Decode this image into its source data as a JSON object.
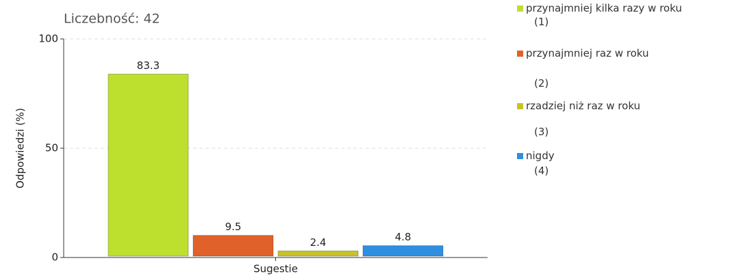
{
  "chart_data": {
    "type": "bar",
    "title": "Liczebność: 42",
    "y_label": "Odpowiedzi (%)",
    "categories": [
      "Sugestie"
    ],
    "series": [
      {
        "name": "przynajmniej kilka razy w roku (1)",
        "color": "#bde02e",
        "values": [
          83.3
        ]
      },
      {
        "name": "przynajmniej raz w roku (2)",
        "color": "#e0622a",
        "values": [
          9.5
        ]
      },
      {
        "name": "rzadziej niż raz w roku (3)",
        "color": "#c8c228",
        "values": [
          2.4
        ]
      },
      {
        "name": "nigdy (4)",
        "color": "#2e8fe0",
        "values": [
          4.8
        ]
      }
    ],
    "ylim": [
      0,
      100
    ],
    "yticks": [
      0,
      50,
      100
    ],
    "grid": true
  }
}
